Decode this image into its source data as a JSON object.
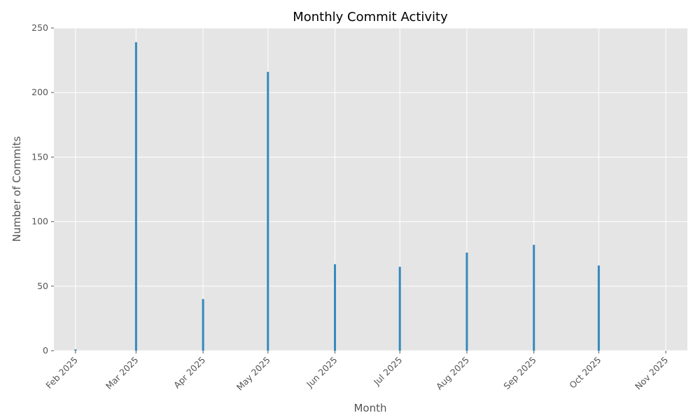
{
  "chart_data": {
    "type": "bar",
    "title": "Monthly Commit Activity",
    "xlabel": "Month",
    "ylabel": "Number of Commits",
    "ylim": [
      0,
      250
    ],
    "yticks": [
      0,
      50,
      100,
      150,
      200,
      250
    ],
    "xticks": [
      "Feb 2025",
      "Mar 2025",
      "Apr 2025",
      "May 2025",
      "Jun 2025",
      "Jul 2025",
      "Aug 2025",
      "Sep 2025",
      "Oct 2025",
      "Nov 2025"
    ],
    "bar_color": "#348ABD",
    "background_color": "#E5E5E5",
    "grid": true,
    "x_axis": "date",
    "categories": [
      "2025-02-01",
      "2025-03-01",
      "2025-04-01",
      "2025-05-01",
      "2025-06-01",
      "2025-07-01",
      "2025-08-01",
      "2025-09-01",
      "2025-10-01"
    ],
    "values": [
      1,
      239,
      40,
      216,
      67,
      65,
      76,
      82,
      66
    ]
  }
}
